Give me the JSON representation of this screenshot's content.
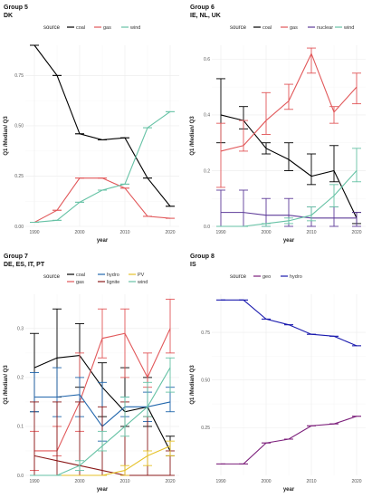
{
  "chart_data": [
    {
      "type": "line",
      "title": "Group 5",
      "subtitle": "DK",
      "xlabel": "year",
      "ylabel": "Q1 /Median/ Q3",
      "xlim": [
        1988,
        2022
      ],
      "ylim": [
        0,
        0.9
      ],
      "xticks": [
        1990,
        2000,
        2010,
        2020
      ],
      "yticks": [
        0,
        0.25,
        0.5,
        0.75
      ],
      "ytick_labels": [
        "0.00",
        "0.25",
        "0.50",
        "0.75"
      ],
      "legend_title": "source",
      "legend_position": "top",
      "grid": true,
      "series": [
        {
          "name": "coal",
          "color": "#000000",
          "x": [
            1990,
            1995,
            2000,
            2005,
            2010,
            2015,
            2020
          ],
          "y": [
            0.9,
            0.75,
            0.46,
            0.43,
            0.44,
            0.24,
            0.1
          ],
          "q1": [
            0.9,
            0.75,
            0.46,
            0.43,
            0.44,
            0.24,
            0.1
          ],
          "q3": [
            0.9,
            0.75,
            0.46,
            0.43,
            0.44,
            0.24,
            0.1
          ]
        },
        {
          "name": "gas",
          "color": "#E15759",
          "x": [
            1990,
            1995,
            2000,
            2005,
            2010,
            2015,
            2020
          ],
          "y": [
            0.02,
            0.08,
            0.24,
            0.24,
            0.19,
            0.05,
            0.04
          ],
          "q1": [
            0.02,
            0.08,
            0.24,
            0.24,
            0.19,
            0.05,
            0.04
          ],
          "q3": [
            0.02,
            0.08,
            0.24,
            0.24,
            0.19,
            0.05,
            0.04
          ]
        },
        {
          "name": "wind",
          "color": "#66C2A5",
          "x": [
            1990,
            1995,
            2000,
            2005,
            2010,
            2015,
            2020
          ],
          "y": [
            0.02,
            0.03,
            0.12,
            0.18,
            0.21,
            0.49,
            0.57
          ],
          "q1": [
            0.02,
            0.03,
            0.12,
            0.18,
            0.21,
            0.49,
            0.57
          ],
          "q3": [
            0.02,
            0.03,
            0.12,
            0.18,
            0.21,
            0.49,
            0.57
          ]
        }
      ]
    },
    {
      "type": "line",
      "title": "Group 6",
      "subtitle": "IE, NL, UK",
      "xlabel": "year",
      "ylabel": "Q1 /Median/ Q3",
      "xlim": [
        1988,
        2022
      ],
      "ylim": [
        0,
        0.65
      ],
      "xticks": [
        1990,
        2000,
        2010,
        2020
      ],
      "yticks": [
        0,
        0.2,
        0.4,
        0.6
      ],
      "ytick_labels": [
        "0.0",
        "0.2",
        "0.4",
        "0.6"
      ],
      "legend_title": "source",
      "legend_position": "top",
      "grid": true,
      "series": [
        {
          "name": "coal",
          "color": "#000000",
          "x": [
            1990,
            1995,
            2000,
            2005,
            2010,
            2015,
            2020
          ],
          "y": [
            0.4,
            0.38,
            0.28,
            0.24,
            0.18,
            0.2,
            0.03
          ],
          "q1": [
            0.3,
            0.35,
            0.26,
            0.2,
            0.15,
            0.16,
            0.01
          ],
          "q3": [
            0.53,
            0.43,
            0.3,
            0.3,
            0.26,
            0.29,
            0.05
          ]
        },
        {
          "name": "gas",
          "color": "#E15759",
          "x": [
            1990,
            1995,
            2000,
            2005,
            2010,
            2015,
            2020
          ],
          "y": [
            0.27,
            0.29,
            0.38,
            0.45,
            0.62,
            0.41,
            0.5
          ],
          "q1": [
            0.14,
            0.27,
            0.33,
            0.42,
            0.55,
            0.37,
            0.44
          ],
          "q3": [
            0.37,
            0.38,
            0.48,
            0.51,
            0.64,
            0.43,
            0.55
          ]
        },
        {
          "name": "nuclear",
          "color": "#5E3C99",
          "x": [
            1990,
            1995,
            2000,
            2005,
            2010,
            2015,
            2020
          ],
          "y": [
            0.05,
            0.05,
            0.04,
            0.04,
            0.03,
            0.03,
            0.03
          ],
          "q1": [
            0.0,
            0.0,
            0.0,
            0.0,
            0.0,
            0.0,
            0.0
          ],
          "q3": [
            0.13,
            0.13,
            0.1,
            0.1,
            0.07,
            0.07,
            0.05
          ]
        },
        {
          "name": "wind",
          "color": "#66C2A5",
          "x": [
            1990,
            1995,
            2000,
            2005,
            2010,
            2015,
            2020
          ],
          "y": [
            0.0,
            0.0,
            0.01,
            0.02,
            0.04,
            0.11,
            0.2
          ],
          "q1": [
            0.0,
            0.0,
            0.0,
            0.01,
            0.02,
            0.07,
            0.16
          ],
          "q3": [
            0.0,
            0.0,
            0.01,
            0.03,
            0.07,
            0.15,
            0.28
          ]
        }
      ]
    },
    {
      "type": "line",
      "title": "Group 7",
      "subtitle": "DE, ES, IT, PT",
      "xlabel": "year",
      "ylabel": "Q1 /Median/ Q3",
      "xlim": [
        1988,
        2022
      ],
      "ylim": [
        0,
        0.37
      ],
      "xticks": [
        1990,
        2000,
        2010,
        2020
      ],
      "yticks": [
        0,
        0.1,
        0.2,
        0.3
      ],
      "ytick_labels": [
        "0.0",
        "0.1",
        "0.2",
        "0.3"
      ],
      "legend_title": "source",
      "legend_position": "top",
      "grid": true,
      "series": [
        {
          "name": "coal",
          "color": "#000000",
          "x": [
            1990,
            1995,
            2000,
            2005,
            2010,
            2015,
            2020
          ],
          "y": [
            0.22,
            0.24,
            0.245,
            0.18,
            0.13,
            0.14,
            0.05
          ],
          "q1": [
            0.13,
            0.16,
            0.18,
            0.12,
            0.1,
            0.1,
            0.04
          ],
          "q3": [
            0.29,
            0.34,
            0.31,
            0.23,
            0.22,
            0.2,
            0.08
          ]
        },
        {
          "name": "gas",
          "color": "#E15759",
          "x": [
            1990,
            1995,
            2000,
            2005,
            2010,
            2015,
            2020
          ],
          "y": [
            0.05,
            0.05,
            0.15,
            0.28,
            0.29,
            0.2,
            0.3
          ],
          "q1": [
            0.01,
            0.04,
            0.09,
            0.24,
            0.2,
            0.18,
            0.25
          ],
          "q3": [
            0.09,
            0.1,
            0.25,
            0.34,
            0.34,
            0.25,
            0.36
          ]
        },
        {
          "name": "hydro",
          "color": "#2166AC",
          "x": [
            1990,
            1995,
            2000,
            2005,
            2010,
            2015,
            2020
          ],
          "y": [
            0.16,
            0.16,
            0.165,
            0.1,
            0.14,
            0.14,
            0.15
          ],
          "q1": [
            0.13,
            0.12,
            0.12,
            0.07,
            0.12,
            0.11,
            0.13
          ],
          "q3": [
            0.21,
            0.22,
            0.2,
            0.19,
            0.16,
            0.17,
            0.18
          ]
        },
        {
          "name": "lignite",
          "color": "#8B1A1A",
          "x": [
            1990,
            1995,
            2000,
            2005,
            2010,
            2015,
            2020
          ],
          "y": [
            0.04,
            0.03,
            0.02,
            0.01,
            0.0,
            0.0,
            0.0
          ],
          "q1": [
            0.0,
            0.0,
            0.0,
            0.0,
            0.0,
            0.0,
            0.0
          ],
          "q3": [
            0.15,
            0.15,
            0.15,
            0.14,
            0.15,
            0.12,
            0.05
          ]
        },
        {
          "name": "PV",
          "color": "#E6C229",
          "x": [
            1990,
            1995,
            2000,
            2005,
            2010,
            2015,
            2020
          ],
          "y": [
            0.0,
            0.0,
            0.0,
            0.0,
            0.01,
            0.04,
            0.06
          ],
          "q1": [
            0.0,
            0.0,
            0.0,
            0.0,
            0.0,
            0.02,
            0.04
          ],
          "q3": [
            0.0,
            0.0,
            0.0,
            0.0,
            0.02,
            0.05,
            0.07
          ]
        },
        {
          "name": "wind",
          "color": "#66C2A5",
          "x": [
            1990,
            1995,
            2000,
            2005,
            2010,
            2015,
            2020
          ],
          "y": [
            0.0,
            0.0,
            0.02,
            0.06,
            0.1,
            0.14,
            0.22
          ],
          "q1": [
            0.0,
            0.0,
            0.01,
            0.05,
            0.08,
            0.12,
            0.17
          ],
          "q3": [
            0.0,
            0.0,
            0.03,
            0.09,
            0.16,
            0.19,
            0.24
          ]
        }
      ]
    },
    {
      "type": "line",
      "title": "Group 8",
      "subtitle": "IS",
      "xlabel": "year",
      "ylabel": "Q1 /Median/ Q3",
      "xlim": [
        1988,
        2022
      ],
      "ylim": [
        0,
        0.95
      ],
      "xticks": [
        1990,
        2000,
        2010,
        2020
      ],
      "yticks": [
        0.25,
        0.5,
        0.75
      ],
      "ytick_labels": [
        "0.25",
        "0.50",
        "0.75"
      ],
      "legend_title": "source",
      "legend_position": "top",
      "grid": true,
      "series": [
        {
          "name": "geo",
          "color": "#7B1E7A",
          "x": [
            1990,
            1995,
            2000,
            2005,
            2010,
            2015,
            2020
          ],
          "y": [
            0.06,
            0.06,
            0.17,
            0.19,
            0.26,
            0.27,
            0.31
          ],
          "q1": [
            0.06,
            0.06,
            0.17,
            0.19,
            0.26,
            0.27,
            0.31
          ],
          "q3": [
            0.06,
            0.06,
            0.17,
            0.19,
            0.26,
            0.27,
            0.31
          ]
        },
        {
          "name": "hydro",
          "color": "#1A1AAE",
          "x": [
            1990,
            1995,
            2000,
            2005,
            2010,
            2015,
            2020
          ],
          "y": [
            0.92,
            0.92,
            0.82,
            0.79,
            0.74,
            0.73,
            0.68
          ],
          "q1": [
            0.92,
            0.92,
            0.82,
            0.79,
            0.74,
            0.73,
            0.68
          ],
          "q3": [
            0.92,
            0.92,
            0.82,
            0.79,
            0.74,
            0.73,
            0.68
          ]
        }
      ]
    }
  ]
}
